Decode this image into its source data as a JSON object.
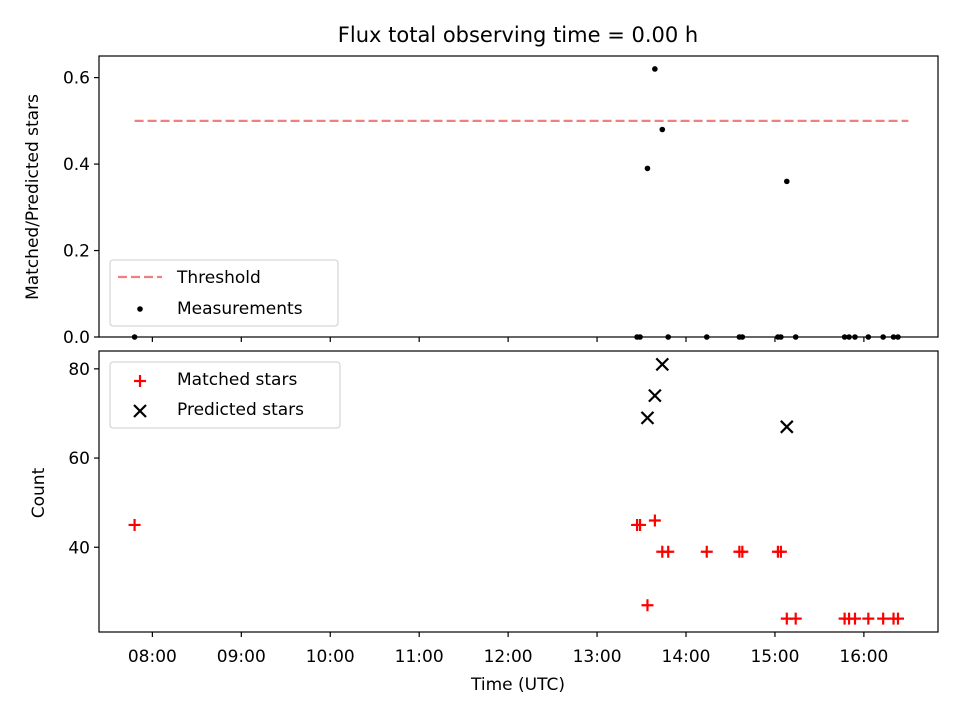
{
  "figure": {
    "title": "Flux total observing time = 0.00 h"
  },
  "chart_data": [
    {
      "type": "scatter",
      "ylabel": "Matched/Predicted stars",
      "xlim": [
        "07:24",
        "16:50"
      ],
      "ylim": [
        0,
        0.65
      ],
      "yticks": [
        0.0,
        0.2,
        0.4,
        0.6
      ],
      "ytick_labels": [
        "0.0",
        "0.2",
        "0.4",
        "0.6"
      ],
      "grid": false,
      "legend": "lower-left",
      "threshold": {
        "name": "Threshold",
        "value": 0.5,
        "x_range": [
          "07:48",
          "16:30"
        ],
        "color": "#f08080"
      },
      "series": [
        {
          "name": "Measurements",
          "color": "#000000",
          "points": [
            [
              "07:48",
              0.0
            ],
            [
              "13:27",
              0.0
            ],
            [
              "13:29",
              0.0
            ],
            [
              "13:34",
              0.39
            ],
            [
              "13:39",
              0.62
            ],
            [
              "13:44",
              0.48
            ],
            [
              "13:48",
              0.0
            ],
            [
              "14:14",
              0.0
            ],
            [
              "14:36",
              0.0
            ],
            [
              "14:38",
              0.0
            ],
            [
              "15:02",
              0.0
            ],
            [
              "15:04",
              0.0
            ],
            [
              "15:08",
              0.36
            ],
            [
              "15:14",
              0.0
            ],
            [
              "15:47",
              0.0
            ],
            [
              "15:50",
              0.0
            ],
            [
              "15:54",
              0.0
            ],
            [
              "16:03",
              0.0
            ],
            [
              "16:13",
              0.0
            ],
            [
              "16:20",
              0.0
            ],
            [
              "16:23",
              0.0
            ]
          ]
        }
      ]
    },
    {
      "type": "scatter",
      "xlabel": "Time (UTC)",
      "ylabel": "Count",
      "xlim": [
        "07:24",
        "16:50"
      ],
      "ylim": [
        21,
        84
      ],
      "xticks": [
        "08:00",
        "09:00",
        "10:00",
        "11:00",
        "12:00",
        "13:00",
        "14:00",
        "15:00",
        "16:00"
      ],
      "yticks": [
        40,
        60,
        80
      ],
      "ytick_labels": [
        "40",
        "60",
        "80"
      ],
      "grid": false,
      "legend": "upper-left",
      "series": [
        {
          "name": "Matched stars",
          "marker": "plus",
          "color": "#ff0000",
          "points": [
            [
              "07:48",
              45
            ],
            [
              "13:27",
              45
            ],
            [
              "13:29",
              45
            ],
            [
              "13:34",
              27
            ],
            [
              "13:39",
              46
            ],
            [
              "13:44",
              39
            ],
            [
              "13:48",
              39
            ],
            [
              "14:14",
              39
            ],
            [
              "14:36",
              39
            ],
            [
              "14:38",
              39
            ],
            [
              "15:02",
              39
            ],
            [
              "15:04",
              39
            ],
            [
              "15:08",
              24
            ],
            [
              "15:14",
              24
            ],
            [
              "15:47",
              24
            ],
            [
              "15:50",
              24
            ],
            [
              "15:54",
              24
            ],
            [
              "16:03",
              24
            ],
            [
              "16:13",
              24
            ],
            [
              "16:20",
              24
            ],
            [
              "16:23",
              24
            ]
          ]
        },
        {
          "name": "Predicted stars",
          "marker": "x",
          "color": "#000000",
          "points": [
            [
              "13:34",
              69
            ],
            [
              "13:39",
              74
            ],
            [
              "13:44",
              81
            ],
            [
              "15:08",
              67
            ]
          ]
        }
      ]
    }
  ]
}
